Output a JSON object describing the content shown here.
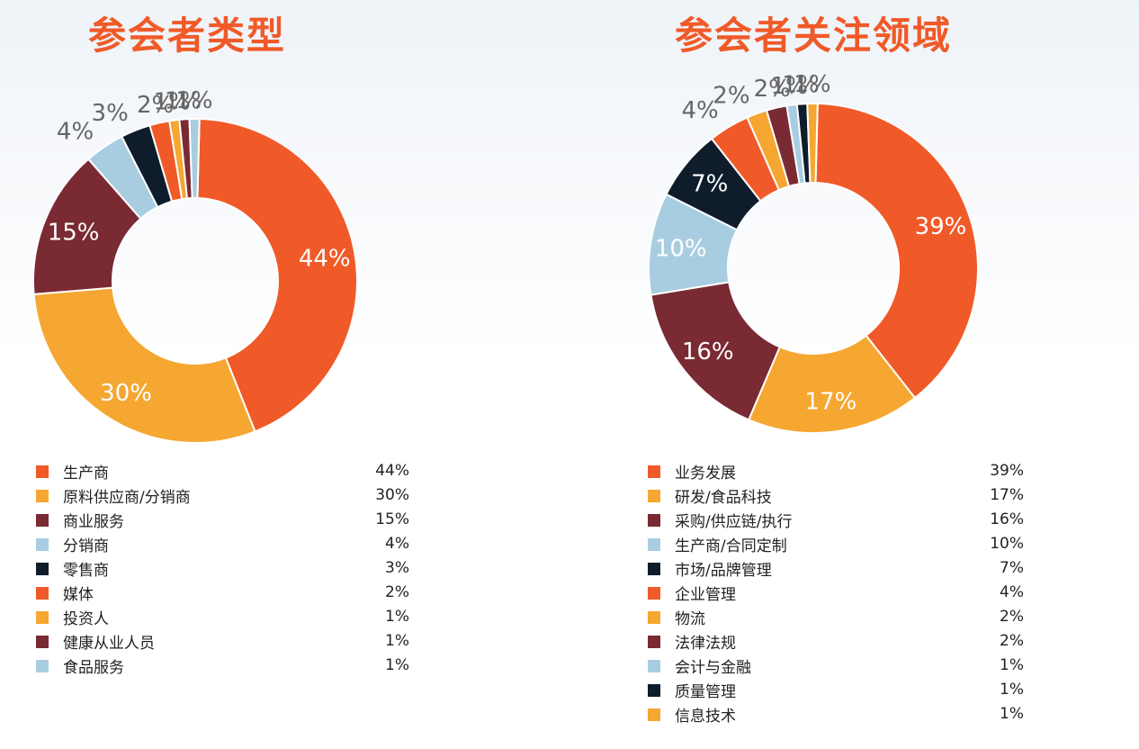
{
  "chart_data": [
    {
      "type": "pie",
      "donut": true,
      "title": "参会者类型",
      "categories": [
        "生产商",
        "原料供应商/分销商",
        "商业服务",
        "分销商",
        "零售商",
        "媒体",
        "投资人",
        "健康从业人员",
        "食品服务"
      ],
      "values": [
        44,
        30,
        15,
        4,
        3,
        2,
        1,
        1,
        1
      ],
      "value_labels": [
        "44%",
        "30%",
        "15%",
        "4%",
        "3%",
        "2%",
        "1%",
        "1%",
        "1%"
      ],
      "colors": [
        "#f05a28",
        "#f5a731",
        "#7a2a33",
        "#a9cde0",
        "#0e1c2b",
        "#f05a28",
        "#f5a731",
        "#7a2a33",
        "#a9cde0"
      ],
      "legend_position": "bottom"
    },
    {
      "type": "pie",
      "donut": true,
      "title": "参会者关注领域",
      "categories": [
        "业务发展",
        "研发/食品科技",
        "采购/供应链/执行",
        "生产商/合同定制",
        "市场/品牌管理",
        "企业管理",
        "物流",
        "法律法规",
        "会计与金融",
        "质量管理",
        "信息技术"
      ],
      "values": [
        39,
        17,
        16,
        10,
        7,
        4,
        2,
        2,
        1,
        1,
        1
      ],
      "value_labels": [
        "39%",
        "17%",
        "16%",
        "10%",
        "7%",
        "4%",
        "2%",
        "2%",
        "1%",
        "1%",
        "1%"
      ],
      "colors": [
        "#f05a28",
        "#f5a731",
        "#7a2a33",
        "#a9cde0",
        "#0e1c2b",
        "#f05a28",
        "#f5a731",
        "#7a2a33",
        "#a9cde0",
        "#0e1c2b",
        "#f5a731"
      ],
      "legend_position": "bottom"
    }
  ]
}
